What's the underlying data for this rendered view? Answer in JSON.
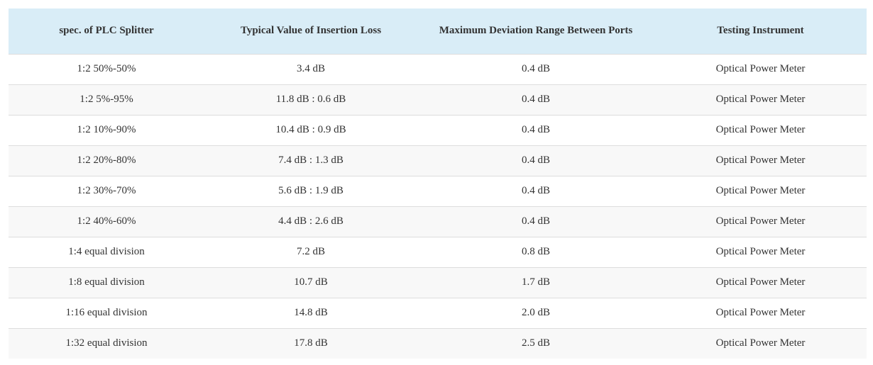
{
  "table": {
    "headers": [
      "spec. of PLC Splitter",
      "Typical Value of Insertion Loss",
      "Maximum Deviation Range Between Ports",
      "Testing Instrument"
    ],
    "rows": [
      [
        "1:2 50%-50%",
        "3.4 dB",
        "0.4 dB",
        "Optical Power Meter"
      ],
      [
        "1:2 5%-95%",
        "11.8 dB : 0.6 dB",
        "0.4 dB",
        "Optical Power Meter"
      ],
      [
        "1:2 10%-90%",
        "10.4 dB : 0.9 dB",
        "0.4 dB",
        "Optical Power Meter"
      ],
      [
        "1:2 20%-80%",
        "7.4 dB : 1.3 dB",
        "0.4 dB",
        "Optical Power Meter"
      ],
      [
        "1:2 30%-70%",
        "5.6 dB : 1.9 dB",
        "0.4 dB",
        "Optical Power Meter"
      ],
      [
        "1:2 40%-60%",
        "4.4 dB : 2.6 dB",
        "0.4 dB",
        "Optical Power Meter"
      ],
      [
        "1:4 equal division",
        "7.2 dB",
        "0.8 dB",
        "Optical Power Meter"
      ],
      [
        "1:8 equal division",
        "10.7 dB",
        "1.7 dB",
        "Optical Power Meter"
      ],
      [
        "1:16 equal division",
        "14.8 dB",
        "2.0 dB",
        "Optical Power Meter"
      ],
      [
        "1:32 equal division",
        "17.8 dB",
        "2.5 dB",
        "Optical Power Meter"
      ]
    ]
  },
  "colors": {
    "header_bg": "#d9edf7",
    "stripe_bg": "#f8f8f8",
    "row_bg": "#ffffff",
    "text": "#333333",
    "border": "#dddddd"
  }
}
